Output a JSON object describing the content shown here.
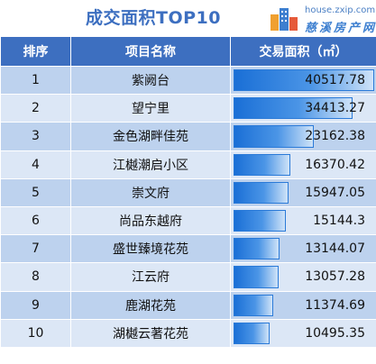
{
  "title": "成交面积TOP10",
  "logo": {
    "url": "house.zxip.com",
    "name": "慈溪房产网"
  },
  "chart_data": {
    "type": "table",
    "columns": [
      "排序",
      "项目名称",
      "交易面积（㎡）"
    ],
    "rows": [
      {
        "rank": "1",
        "name": "紫阙台",
        "area": "40517.78"
      },
      {
        "rank": "2",
        "name": "望宁里",
        "area": "34413.27"
      },
      {
        "rank": "3",
        "name": "金色湖畔佳苑",
        "area": "23162.38"
      },
      {
        "rank": "4",
        "name": "江樾潮启小区",
        "area": "16370.42"
      },
      {
        "rank": "5",
        "name": "崇文府",
        "area": "15947.05"
      },
      {
        "rank": "6",
        "name": "尚品东越府",
        "area": "15144.3"
      },
      {
        "rank": "7",
        "name": "盛世臻境花苑",
        "area": "13144.07"
      },
      {
        "rank": "8",
        "name": "江云府",
        "area": "13057.28"
      },
      {
        "rank": "9",
        "name": "鹿湖花苑",
        "area": "11374.69"
      },
      {
        "rank": "10",
        "name": "湖樾云著花苑",
        "area": "10495.35"
      }
    ],
    "max_value": 40517.78
  },
  "colors": {
    "header_bg": "#3d6fc0",
    "row_odd": "#bdd2ee",
    "row_even": "#dce7f6",
    "bar": "#1a6fd6",
    "title": "#3d6fc0"
  }
}
